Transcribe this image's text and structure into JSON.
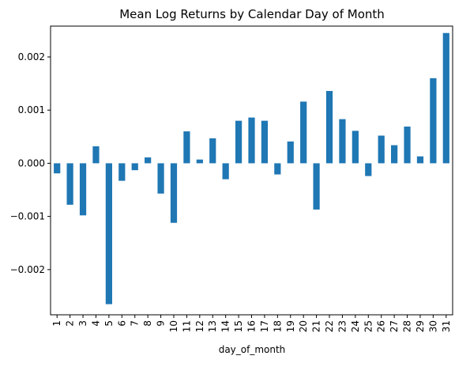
{
  "chart_data": {
    "type": "bar",
    "title": "Mean Log Returns by Calendar Day of Month",
    "xlabel": "day_of_month",
    "ylabel": "",
    "ylim": [
      -0.00285,
      0.00258
    ],
    "yticks": [
      -0.002,
      -0.001,
      0.0,
      0.001,
      0.002
    ],
    "ytick_labels": [
      "−0.002",
      "−0.001",
      "0.000",
      "0.001",
      "0.002"
    ],
    "categories": [
      "1",
      "2",
      "3",
      "4",
      "5",
      "6",
      "7",
      "8",
      "9",
      "10",
      "11",
      "12",
      "13",
      "14",
      "15",
      "16",
      "17",
      "18",
      "19",
      "20",
      "21",
      "22",
      "23",
      "24",
      "25",
      "26",
      "27",
      "28",
      "29",
      "30",
      "31"
    ],
    "values": [
      -0.00019,
      -0.00078,
      -0.00098,
      0.00032,
      -0.00265,
      -0.00033,
      -0.00013,
      0.00011,
      -0.00057,
      -0.00112,
      0.0006,
      7e-05,
      0.00047,
      -0.0003,
      0.0008,
      0.00086,
      0.0008,
      -0.00021,
      0.00041,
      0.00116,
      -0.00087,
      0.00136,
      0.00083,
      0.00061,
      -0.00024,
      0.00052,
      0.00034,
      0.00069,
      0.00013,
      0.0016,
      0.00245
    ],
    "bar_color": "#1f77b4",
    "grid": false,
    "legend": false
  }
}
